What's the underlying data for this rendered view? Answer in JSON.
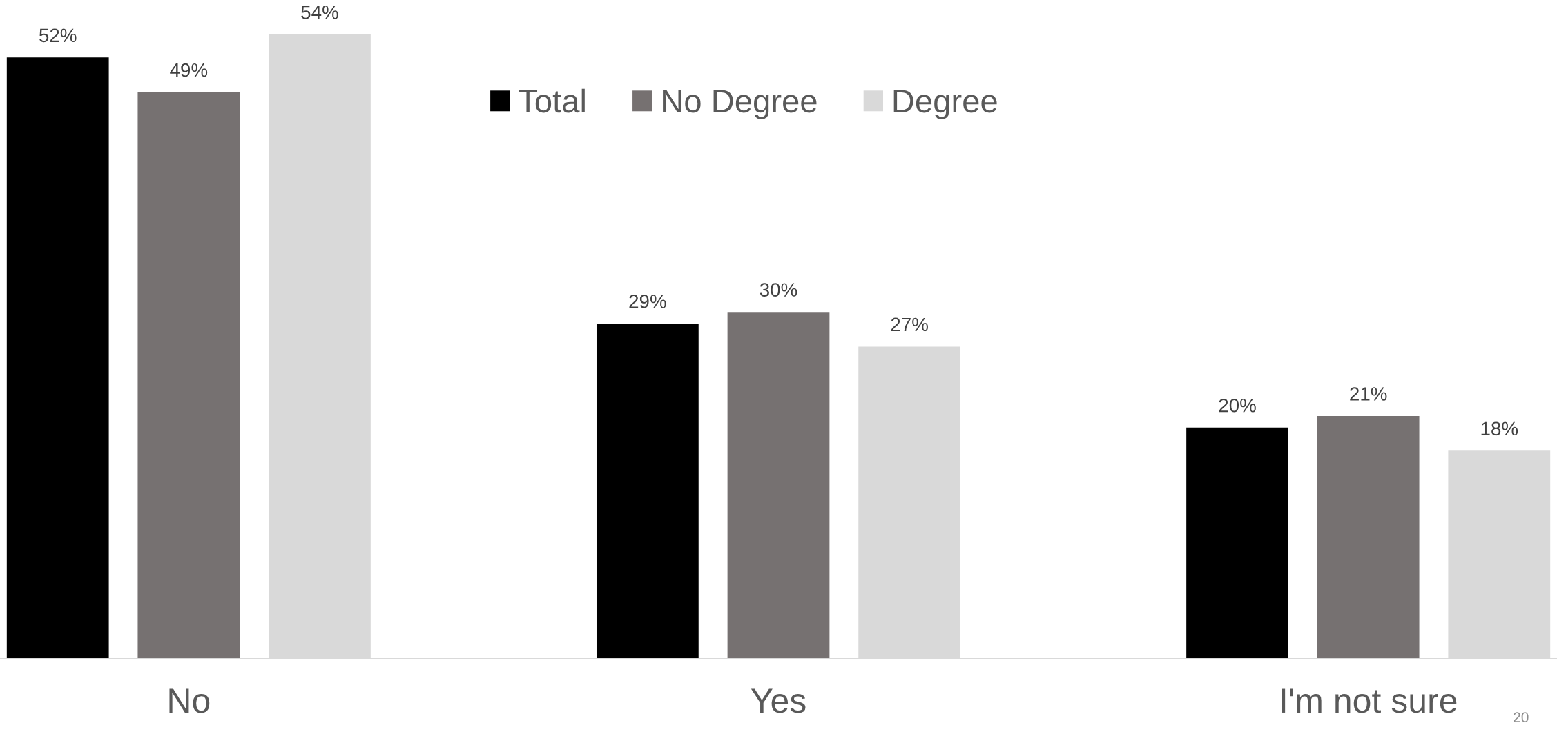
{
  "chart_data": {
    "type": "bar",
    "categories": [
      "No",
      "Yes",
      "I'm not sure"
    ],
    "series": [
      {
        "name": "Total",
        "color": "#000000",
        "values": [
          52,
          29,
          20
        ],
        "value_labels": [
          "52%",
          "29%",
          "20%"
        ]
      },
      {
        "name": "No Degree",
        "color": "#767171",
        "values": [
          49,
          30,
          21
        ],
        "value_labels": [
          "49%",
          "30%",
          "21%"
        ]
      },
      {
        "name": "Degree",
        "color": "#d9d9d9",
        "values": [
          54,
          27,
          18
        ],
        "value_labels": [
          "54%",
          "27%",
          "18%"
        ]
      }
    ],
    "tick_labels": "x",
    "grid": false,
    "legend": "top",
    "annotations": [
      "20"
    ]
  }
}
